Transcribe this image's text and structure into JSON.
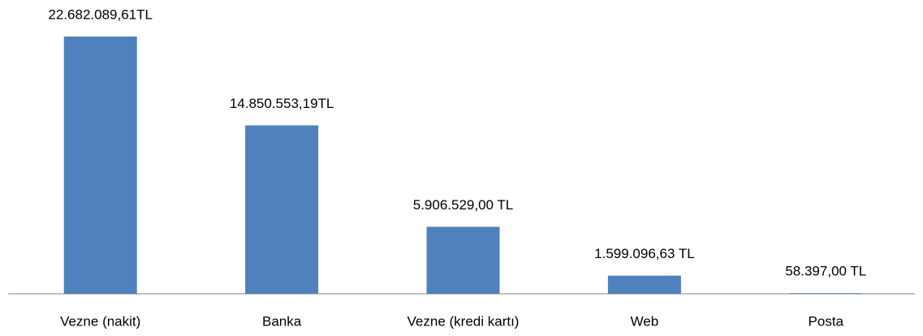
{
  "chart_data": {
    "type": "bar",
    "categories": [
      "Vezne (nakit)",
      "Banka",
      "Vezne (kredi kartı)",
      "Web",
      "Posta"
    ],
    "values": [
      22682089.61,
      14850553.19,
      5906529.0,
      1599096.63,
      58397.0
    ],
    "value_labels": [
      "22.682.089,61TL",
      "14.850.553,19TL",
      "5.906.529,00 TL",
      "1.599.096,63 TL",
      "58.397,00 TL"
    ],
    "color": "#4f81bd"
  }
}
